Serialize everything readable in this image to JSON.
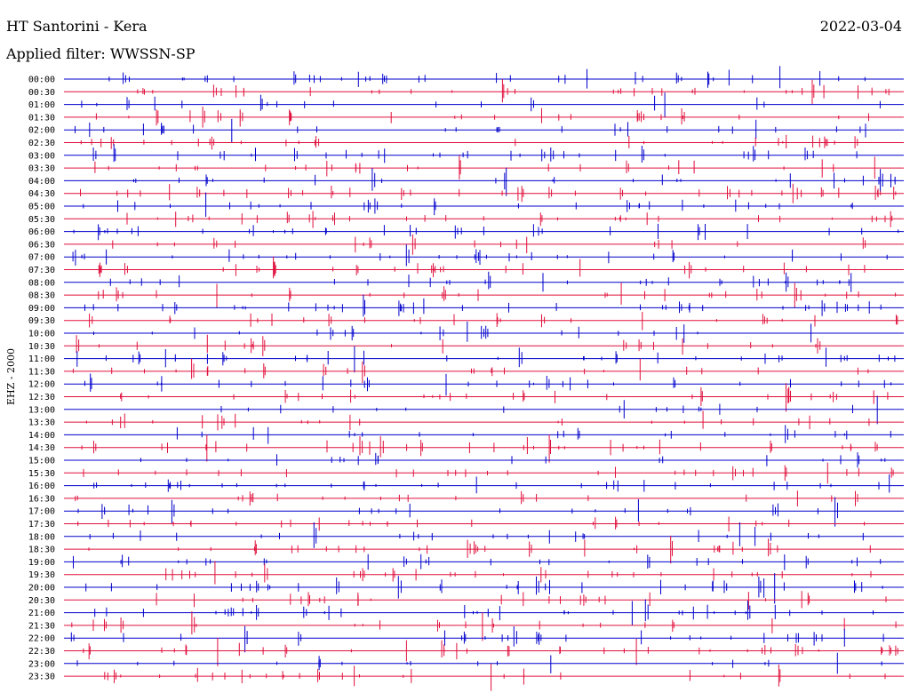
{
  "header": {
    "station": "HT Santorini - Kera",
    "filter": "Applied filter: WWSSN-SP",
    "date": "2022-03-04"
  },
  "chart_data": {
    "type": "line",
    "ylabel": "EHZ - 2000",
    "rows": [
      "00:00",
      "00:30",
      "01:00",
      "01:30",
      "02:00",
      "02:30",
      "03:00",
      "03:30",
      "04:00",
      "04:30",
      "05:00",
      "05:30",
      "06:00",
      "06:30",
      "07:00",
      "07:30",
      "08:00",
      "08:30",
      "09:00",
      "09:30",
      "10:00",
      "10:30",
      "11:00",
      "11:30",
      "12:00",
      "12:30",
      "13:00",
      "13:30",
      "14:00",
      "14:30",
      "15:00",
      "15:30",
      "16:00",
      "16:30",
      "17:00",
      "17:30",
      "18:00",
      "18:30",
      "19:00",
      "19:30",
      "20:00",
      "20:30",
      "21:00",
      "21:30",
      "22:00",
      "22:30",
      "23:00",
      "23:30"
    ],
    "trace_colors": [
      "#0000cc",
      "#e0103c"
    ],
    "x_minutes": [
      0,
      30
    ],
    "grid": false
  }
}
